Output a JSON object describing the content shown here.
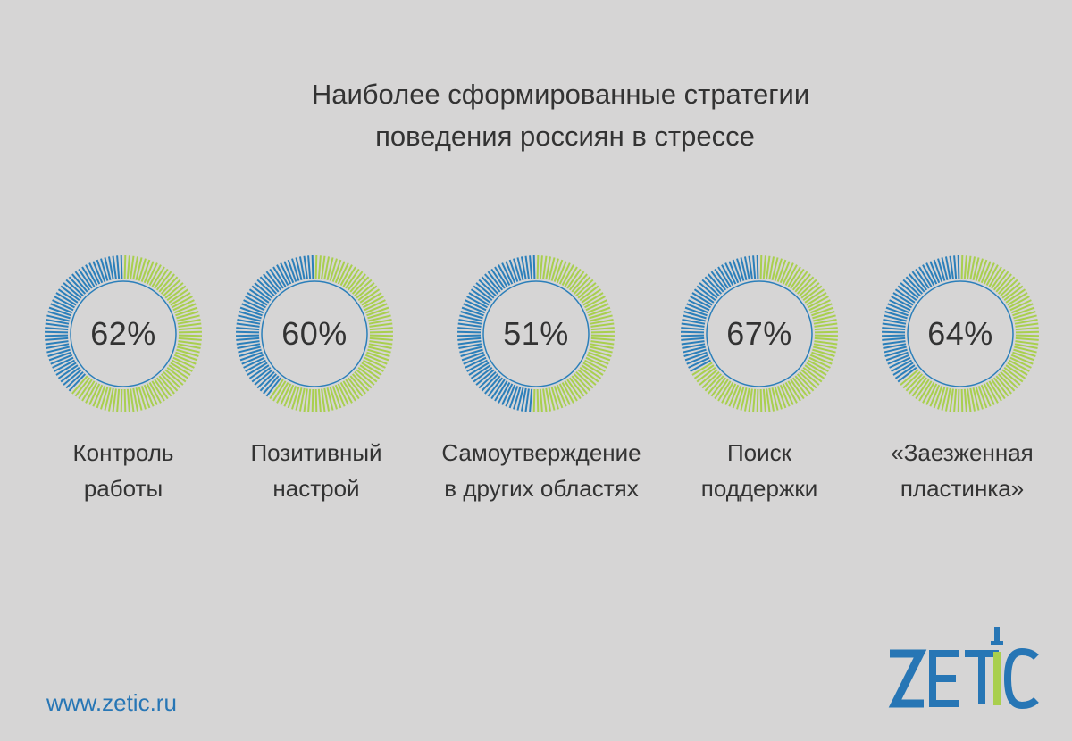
{
  "title_line1": "Наиболее сформированные стратегии",
  "title_line2": "поведения россиян в стрессе",
  "chart_data": {
    "type": "donut",
    "title": "Наиболее сформированные стратегии поведения россиян в стрессе",
    "categories": [
      "Контроль работы",
      "Позитивный настрой",
      "Самоутверждение в других областях",
      "Поиск поддержки",
      "«Заезженная пластинка»"
    ],
    "values": [
      62,
      60,
      51,
      67,
      64
    ],
    "unit": "%",
    "colors": {
      "filled": "#a9cf4e",
      "remainder": "#2b7fba",
      "inner_ring": "#2b7fba"
    }
  },
  "items": [
    {
      "pct": "62%",
      "label1": "Контроль",
      "label2": "работы"
    },
    {
      "pct": "60%",
      "label1": "Позитивный",
      "label2": "настрой"
    },
    {
      "pct": "51%",
      "label1": "Самоутверждение",
      "label2": "в других областях"
    },
    {
      "pct": "67%",
      "label1": "Поиск",
      "label2": "поддержки"
    },
    {
      "pct": "64%",
      "label1": "«Заезженная",
      "label2": "пластинка»"
    }
  ],
  "footer": {
    "url": "www.zetic.ru"
  },
  "logo": {
    "text": "ZETIC",
    "icon": "zetic-logo-icon"
  }
}
